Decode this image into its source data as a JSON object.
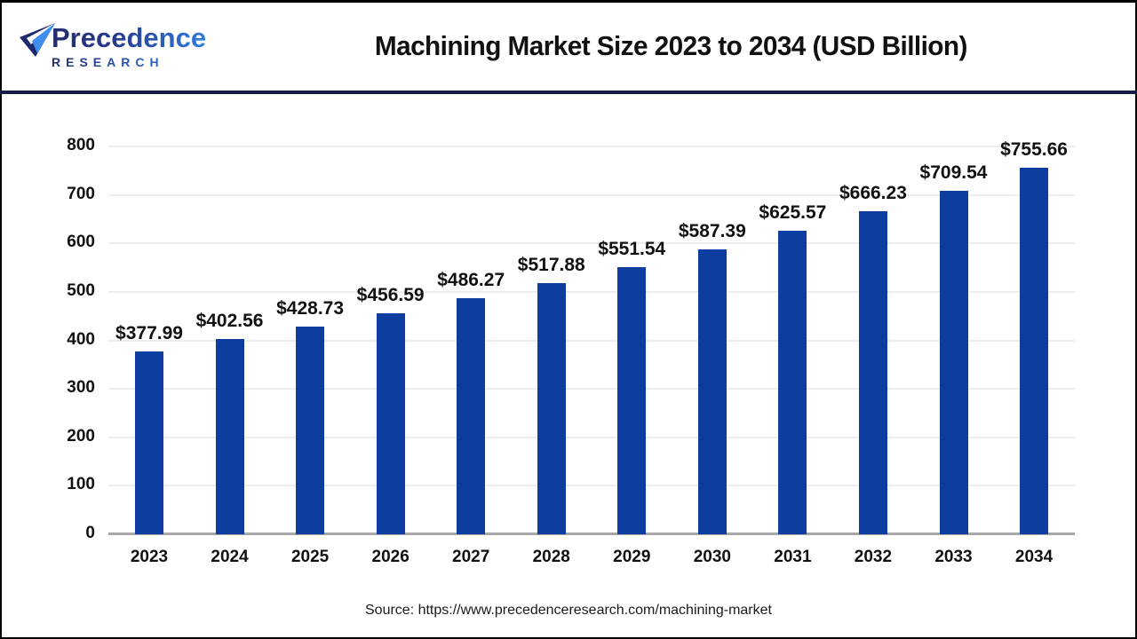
{
  "header": {
    "logo": {
      "line1": "Precedence",
      "line2": "RESEARCH"
    },
    "title": "Machining Market Size 2023 to 2034 (USD Billion)"
  },
  "chart_data": {
    "type": "bar",
    "title": "Machining Market Size 2023 to 2034 (USD Billion)",
    "categories": [
      "2023",
      "2024",
      "2025",
      "2026",
      "2027",
      "2028",
      "2029",
      "2030",
      "2031",
      "2032",
      "2033",
      "2034"
    ],
    "values": [
      377.99,
      402.56,
      428.73,
      456.59,
      486.27,
      517.88,
      551.54,
      587.39,
      625.57,
      666.23,
      709.54,
      755.66
    ],
    "value_labels": [
      "$377.99",
      "$402.56",
      "$428.73",
      "$456.59",
      "$486.27",
      "$517.88",
      "$551.54",
      "$587.39",
      "$625.57",
      "$666.23",
      "$709.54",
      "$755.66"
    ],
    "xlabel": "",
    "ylabel": "",
    "ylim": [
      0,
      800
    ],
    "ytick_values": [
      0,
      100,
      200,
      300,
      400,
      500,
      600,
      700,
      800
    ],
    "ytick_labels": [
      "0",
      "100",
      "200",
      "300",
      "400",
      "500",
      "600",
      "700",
      "800"
    ],
    "grid": true,
    "legend": false,
    "bar_color": "#0d3d9e",
    "gridline_color": "#ededed",
    "axis_line_color": "#a8a8a8"
  },
  "footer": {
    "source": "Source: https://www.precedenceresearch.com/machining-market"
  },
  "colors": {
    "logo_dark": "#232c6e",
    "logo_blue": "#2f7ce0",
    "separator": "#191940",
    "page_border": "#000000",
    "label_text": "#111111"
  }
}
